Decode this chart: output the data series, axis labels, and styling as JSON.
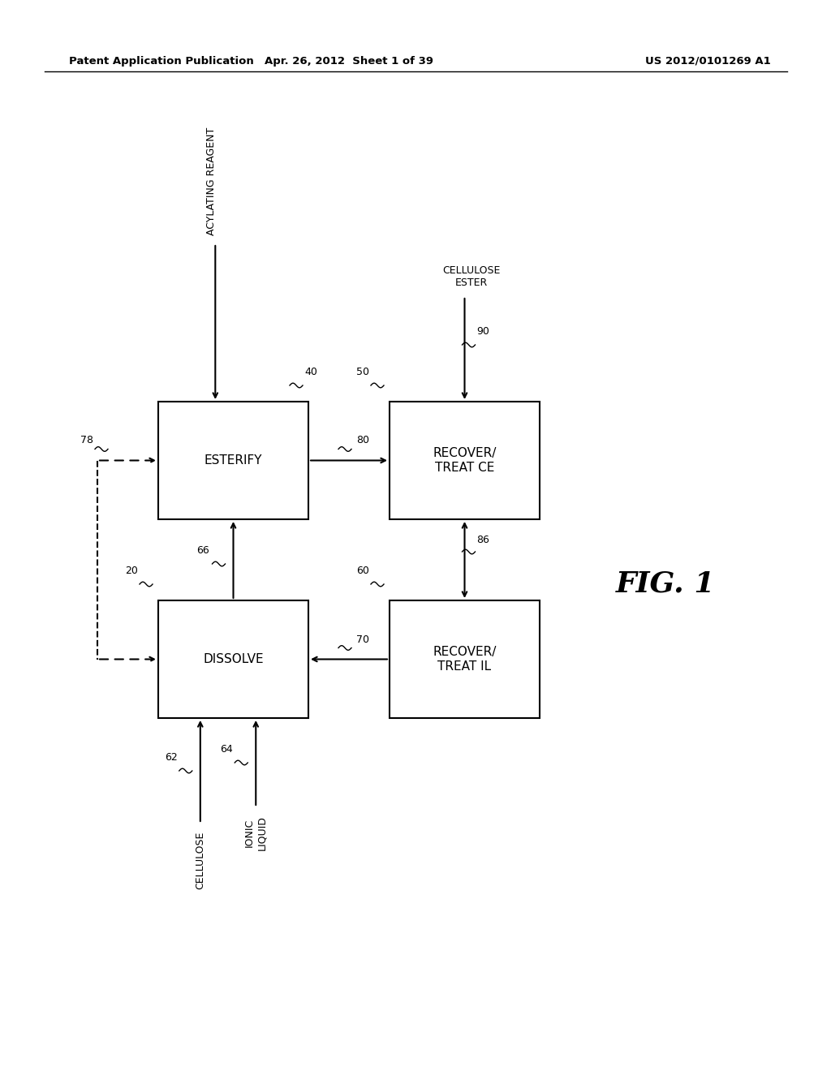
{
  "header_left": "Patent Application Publication",
  "header_center": "Apr. 26, 2012  Sheet 1 of 39",
  "header_right": "US 2012/0101269 A1",
  "background_color": "#ffffff",
  "fig_label": "FIG. 1",
  "box_esterify": {
    "label": "ESTERIFY",
    "num": "40"
  },
  "box_recover_ce": {
    "label": "RECOVER/\nTREAT CE",
    "num": "50"
  },
  "box_dissolve": {
    "label": "DISSOLVE",
    "num": "20"
  },
  "box_recover_il": {
    "label": "RECOVER/\nTREAT IL",
    "num": "60"
  },
  "arrow_labels": {
    "78": "78",
    "80": "80",
    "86": "86",
    "70": "70",
    "66": "66",
    "90": "90",
    "62": "62",
    "64": "64",
    "20": "20",
    "60": "60"
  },
  "text_acylating": "ACYLATING REAGENT",
  "text_cellulose_ester": "CELLULOSE\nESTER",
  "text_cellulose": "CELLULOSE",
  "text_ionic_liquid": "IONIC\nLIQUID"
}
